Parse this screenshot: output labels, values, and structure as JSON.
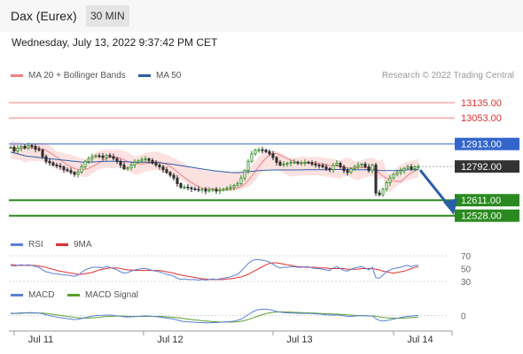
{
  "header": {
    "title": "Dax (Eurex)",
    "interval": "30 MIN"
  },
  "datetime": "Wednesday, July 13, 2022 9:37:42 PM CET",
  "credit": "Research © 2022 Trading Central",
  "legend": {
    "price": [
      {
        "label": "MA 20 + Bollinger Bands",
        "color": "#f08080"
      },
      {
        "label": "MA 50",
        "color": "#2b5ea8"
      }
    ],
    "rsi": [
      {
        "label": "RSI",
        "color": "#5b7fd6"
      },
      {
        "label": "9MA",
        "color": "#e03030"
      }
    ],
    "macd": [
      {
        "label": "MACD",
        "color": "#5b7fd6"
      },
      {
        "label": "MACD Signal",
        "color": "#5aa02c"
      }
    ]
  },
  "chart_data": {
    "type": "candlestick",
    "x_tick_labels": [
      "Jul 11",
      "Jul 12",
      "Jul 13",
      "Jul 14"
    ],
    "y_range": [
      12460,
      13230
    ],
    "levels": [
      {
        "value": 13135,
        "label": "13135.00",
        "kind": "resistance"
      },
      {
        "value": 13053,
        "label": "13053.00",
        "kind": "resistance"
      },
      {
        "value": 12913,
        "label": "12913.00",
        "kind": "resistance-key"
      },
      {
        "value": 12792,
        "label": "12792.00",
        "kind": "last-price"
      },
      {
        "value": 12611,
        "label": "12611.00",
        "kind": "support"
      },
      {
        "value": 12528,
        "label": "12528.00",
        "kind": "support"
      }
    ],
    "close": [
      12895,
      12875,
      12890,
      12900,
      12892,
      12905,
      12900,
      12885,
      12880,
      12845,
      12820,
      12812,
      12800,
      12795,
      12790,
      12775,
      12770,
      12760,
      12750,
      12762,
      12790,
      12820,
      12835,
      12845,
      12850,
      12848,
      12840,
      12852,
      12845,
      12835,
      12820,
      12800,
      12780,
      12785,
      12800,
      12815,
      12822,
      12830,
      12833,
      12825,
      12810,
      12800,
      12790,
      12775,
      12760,
      12745,
      12730,
      12700,
      12680,
      12682,
      12678,
      12672,
      12670,
      12665,
      12670,
      12660,
      12665,
      12670,
      12660,
      12665,
      12670,
      12675,
      12680,
      12690,
      12700,
      12730,
      12770,
      12820,
      12860,
      12880,
      12882,
      12880,
      12872,
      12860,
      12840,
      12815,
      12800,
      12805,
      12810,
      12815,
      12815,
      12810,
      12812,
      12815,
      12813,
      12805,
      12800,
      12798,
      12790,
      12780,
      12775,
      12800,
      12810,
      12790,
      12770,
      12760,
      12780,
      12790,
      12800,
      12805,
      12790,
      12770,
      12800,
      12650,
      12640,
      12670,
      12705,
      12730,
      12750,
      12760,
      12770,
      12782,
      12790,
      12780,
      12790,
      12792
    ],
    "ma50": [
      12870,
      12865,
      12860,
      12855,
      12850,
      12847,
      12845,
      12843,
      12840,
      12838,
      12836,
      12834,
      12832,
      12830,
      12828,
      12826,
      12824,
      12822,
      12820,
      12818,
      12816,
      12815,
      12815,
      12816,
      12817,
      12818,
      12819,
      12820,
      12820,
      12820,
      12820,
      12819,
      12818,
      12817,
      12816,
      12815,
      12815,
      12815,
      12815,
      12815,
      12814,
      12813,
      12812,
      12810,
      12808,
      12806,
      12803,
      12800,
      12797,
      12794,
      12791,
      12788,
      12785,
      12782,
      12779,
      12776,
      12773,
      12770,
      12768,
      12766,
      12764,
      12762,
      12760,
      12759,
      12759,
      12760,
      12762,
      12764,
      12766,
      12768,
      12770,
      12771,
      12772,
      12773,
      12773,
      12774,
      12774,
      12774,
      12774,
      12774,
      12774,
      12774,
      12774,
      12775,
      12775,
      12775,
      12775,
      12775,
      12775,
      12775,
      12775,
      12776,
      12776,
      12776,
      12776,
      12775,
      12775,
      12775,
      12775,
      12775,
      12775,
      12775,
      12775,
      12773,
      12771,
      12770,
      12770,
      12770,
      12770,
      12771,
      12772,
      12773,
      12774,
      12775,
      12775,
      12776
    ],
    "bollinger": {
      "upper_offset": 90,
      "lower_offset": 90
    },
    "rsi_range": [
      30,
      70
    ],
    "rsi_ticks": [
      "70",
      "50",
      "30"
    ],
    "rsi": [
      55,
      54,
      55,
      56,
      55,
      56,
      55,
      53,
      52,
      48,
      45,
      44,
      42,
      42,
      41,
      40,
      40,
      39,
      38,
      40,
      44,
      48,
      50,
      52,
      52,
      52,
      51,
      53,
      52,
      50,
      48,
      45,
      43,
      44,
      46,
      48,
      49,
      50,
      50,
      49,
      47,
      46,
      45,
      43,
      41,
      40,
      38,
      35,
      33,
      34,
      33,
      33,
      33,
      32,
      33,
      32,
      33,
      34,
      33,
      34,
      35,
      36,
      37,
      39,
      41,
      46,
      52,
      58,
      62,
      64,
      64,
      63,
      62,
      60,
      57,
      53,
      51,
      52,
      52,
      53,
      53,
      52,
      52,
      53,
      53,
      51,
      50,
      50,
      49,
      48,
      47,
      51,
      53,
      50,
      47,
      46,
      49,
      51,
      52,
      53,
      51,
      48,
      52,
      36,
      35,
      40,
      45,
      48,
      50,
      51,
      52,
      54,
      55,
      53,
      55,
      55
    ],
    "rsi_ma": [
      56,
      56,
      55,
      55,
      55,
      55,
      55,
      55,
      54,
      53,
      52,
      50,
      49,
      47,
      46,
      45,
      44,
      43,
      42,
      41,
      41,
      42,
      43,
      44,
      46,
      48,
      49,
      50,
      51,
      51,
      51,
      50,
      49,
      48,
      48,
      47,
      47,
      47,
      47,
      47,
      47,
      47,
      47,
      46,
      45,
      44,
      43,
      41,
      40,
      39,
      38,
      37,
      36,
      35,
      34,
      34,
      33,
      33,
      33,
      33,
      33,
      34,
      34,
      35,
      36,
      37,
      39,
      41,
      44,
      47,
      50,
      53,
      56,
      58,
      59,
      59,
      58,
      57,
      56,
      55,
      54,
      53,
      53,
      52,
      52,
      52,
      52,
      51,
      51,
      51,
      50,
      50,
      50,
      50,
      50,
      49,
      49,
      49,
      49,
      50,
      50,
      50,
      50,
      49,
      48,
      46,
      45,
      44,
      43,
      44,
      45,
      46,
      48,
      50,
      52,
      53
    ],
    "macd_zero_label": "0",
    "macd_range": [
      -55,
      45
    ],
    "macd": [
      10,
      9,
      10,
      11,
      11,
      12,
      12,
      11,
      10,
      7,
      3,
      0,
      -3,
      -6,
      -8,
      -10,
      -12,
      -14,
      -16,
      -15,
      -12,
      -8,
      -5,
      -2,
      0,
      1,
      1,
      2,
      2,
      1,
      -1,
      -3,
      -5,
      -6,
      -5,
      -4,
      -3,
      -2,
      -1,
      -2,
      -3,
      -4,
      -6,
      -8,
      -10,
      -12,
      -14,
      -18,
      -22,
      -24,
      -25,
      -26,
      -27,
      -28,
      -28,
      -29,
      -29,
      -28,
      -28,
      -27,
      -26,
      -25,
      -24,
      -22,
      -19,
      -14,
      -6,
      4,
      13,
      20,
      24,
      26,
      26,
      24,
      21,
      17,
      14,
      12,
      11,
      10,
      10,
      9,
      9,
      9,
      9,
      8,
      7,
      6,
      5,
      3,
      2,
      2,
      3,
      1,
      -1,
      -3,
      -3,
      -2,
      -1,
      0,
      -1,
      -2,
      -1,
      -12,
      -20,
      -22,
      -20,
      -17,
      -14,
      -11,
      -8,
      -5,
      -3,
      -2,
      0,
      1
    ],
    "macd_signal": [
      8,
      8,
      9,
      9,
      10,
      10,
      10,
      10,
      10,
      10,
      9,
      7,
      5,
      3,
      1,
      -1,
      -3,
      -5,
      -7,
      -9,
      -10,
      -10,
      -10,
      -9,
      -8,
      -7,
      -5,
      -4,
      -3,
      -2,
      -2,
      -2,
      -2,
      -3,
      -3,
      -3,
      -3,
      -3,
      -3,
      -3,
      -3,
      -3,
      -3,
      -4,
      -5,
      -6,
      -7,
      -8,
      -10,
      -12,
      -14,
      -16,
      -18,
      -19,
      -21,
      -22,
      -23,
      -24,
      -25,
      -26,
      -26,
      -26,
      -26,
      -26,
      -25,
      -23,
      -20,
      -16,
      -11,
      -6,
      -1,
      4,
      8,
      11,
      13,
      14,
      15,
      15,
      14,
      14,
      13,
      13,
      12,
      11,
      11,
      10,
      10,
      9,
      8,
      7,
      7,
      6,
      6,
      5,
      4,
      3,
      2,
      1,
      0,
      0,
      0,
      -1,
      -1,
      -3,
      -5,
      -7,
      -9,
      -10,
      -11,
      -11,
      -11,
      -10,
      -9,
      -8,
      -7,
      -6
    ]
  }
}
